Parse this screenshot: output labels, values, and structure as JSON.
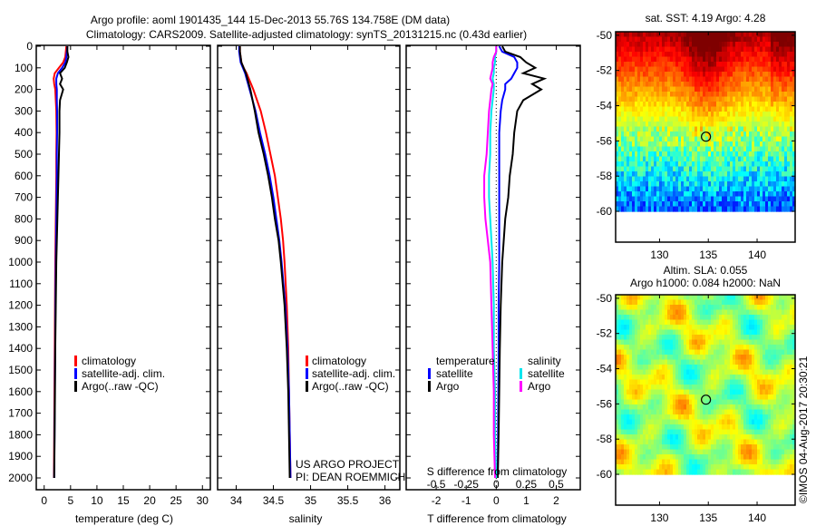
{
  "title_line1": "Argo profile: aoml 1901435_144 15-Dec-2013 55.76S 134.758E (DM data)",
  "title_line2": "Climatology: CARS2009. Satellite-adjusted climatology: synTS_20131215.nc (0.43d earlier)",
  "credit": "US ARGO PROJECT",
  "pi": "PI: DEAN ROEMMICH",
  "watermark": "©IMOS 04-Aug-2017 20:30:21",
  "colors": {
    "climatology": "#ff0000",
    "satellite": "#0000ff",
    "argo": "#000000",
    "sal_satellite": "#00e5ee",
    "sal_argo": "#ff00ff"
  },
  "chart_data": [
    {
      "type": "line",
      "title": "",
      "xlabel": "temperature (deg C)",
      "ylabel": "",
      "xlim": [
        -1.5,
        31.5
      ],
      "ylim": [
        2050,
        0
      ],
      "xticks": [
        0,
        5,
        10,
        15,
        20,
        25,
        30
      ],
      "yticks": [
        0,
        100,
        200,
        300,
        400,
        500,
        600,
        700,
        800,
        900,
        1000,
        1100,
        1200,
        1300,
        1400,
        1500,
        1600,
        1700,
        1800,
        1900,
        2000
      ],
      "depth": [
        0,
        25,
        50,
        75,
        100,
        125,
        150,
        175,
        200,
        250,
        300,
        400,
        500,
        600,
        700,
        800,
        900,
        1000,
        1200,
        1400,
        1600,
        1800,
        2000
      ],
      "legend": [
        "climatology",
        "satellite-adj. clim.",
        "Argo(..raw -QC)"
      ],
      "series": [
        {
          "name": "climatology",
          "values": [
            4.2,
            4.1,
            4.0,
            3.6,
            2.8,
            2.0,
            1.8,
            1.9,
            2.1,
            2.2,
            2.3,
            2.35,
            2.3,
            2.3,
            2.25,
            2.2,
            2.15,
            2.1,
            2.05,
            2.0,
            1.95,
            1.9,
            1.85
          ]
        },
        {
          "name": "satellite-adj. clim.",
          "values": [
            4.4,
            4.3,
            4.2,
            4.0,
            3.4,
            2.6,
            2.3,
            2.3,
            2.4,
            2.4,
            2.45,
            2.45,
            2.4,
            2.4,
            2.35,
            2.3,
            2.25,
            2.2,
            2.13,
            2.08,
            2.02,
            1.96,
            1.9
          ]
        },
        {
          "name": "Argo(..raw -QC)",
          "values": [
            4.4,
            4.4,
            4.6,
            4.3,
            3.9,
            3.0,
            3.4,
            3.0,
            3.6,
            3.0,
            2.9,
            2.9,
            2.8,
            2.7,
            2.6,
            2.5,
            2.4,
            2.3,
            2.2,
            2.1,
            2.05,
            1.98,
            1.9
          ]
        }
      ]
    },
    {
      "type": "line",
      "xlabel": "salinity",
      "xlim": [
        33.75,
        36.2
      ],
      "ylim": [
        2050,
        0
      ],
      "xticks": [
        34,
        34.5,
        35,
        35.5,
        36
      ],
      "legend": [
        "climatology",
        "satellite-adj. clim.",
        "Argo(..raw -QC)"
      ],
      "series": [
        {
          "name": "climatology",
          "values": [
            34.05,
            34.05,
            34.06,
            34.07,
            34.1,
            34.14,
            34.17,
            34.2,
            34.23,
            34.28,
            34.33,
            34.4,
            34.46,
            34.52,
            34.56,
            34.6,
            34.63,
            34.65,
            34.68,
            34.7,
            34.71,
            34.72,
            34.73
          ]
        },
        {
          "name": "satellite-adj. clim.",
          "values": [
            34.04,
            34.04,
            34.05,
            34.06,
            34.09,
            34.12,
            34.14,
            34.16,
            34.18,
            34.22,
            34.26,
            34.32,
            34.39,
            34.45,
            34.5,
            34.54,
            34.58,
            34.61,
            34.66,
            34.69,
            34.71,
            34.72,
            34.73
          ]
        },
        {
          "name": "Argo(..raw -QC)",
          "values": [
            34.05,
            34.05,
            34.06,
            34.07,
            34.1,
            34.13,
            34.15,
            34.17,
            34.19,
            34.22,
            34.25,
            34.3,
            34.37,
            34.43,
            34.48,
            34.52,
            34.57,
            34.6,
            34.65,
            34.68,
            34.7,
            34.71,
            34.72
          ]
        }
      ]
    },
    {
      "type": "line",
      "xlabel": "T difference from climatology",
      "xlabel2": "S difference from climatology",
      "xlim": [
        -2,
        2
      ],
      "xlim_display": [
        -3.0,
        2.8
      ],
      "ylim": [
        2050,
        0
      ],
      "xticks": [
        -2,
        -1,
        0,
        1,
        2
      ],
      "xticks2": [
        "-0.5",
        "-0.25",
        "0",
        "0.25",
        "0.5"
      ],
      "legend_temperature": {
        "title": "temperature",
        "items": [
          "satellite",
          "Argo"
        ]
      },
      "legend_salinity": {
        "title": "salinity",
        "items": [
          "satellite",
          "Argo"
        ]
      },
      "series": [
        {
          "name": "T satellite",
          "values": [
            0.1,
            0.2,
            0.6,
            0.7,
            0.7,
            0.6,
            0.5,
            0.3,
            0.3,
            0.2,
            0.15,
            0.1,
            0.1,
            0.1,
            0.1,
            0.1,
            0.1,
            0.1,
            0.08,
            0.08,
            0.07,
            0.06,
            0.05
          ]
        },
        {
          "name": "T Argo",
          "values": [
            0.2,
            0.3,
            0.8,
            1.0,
            1.3,
            0.9,
            1.6,
            1.2,
            1.5,
            0.9,
            0.7,
            0.6,
            0.55,
            0.45,
            0.4,
            0.3,
            0.25,
            0.2,
            0.15,
            0.12,
            0.1,
            0.08,
            0.05
          ]
        },
        {
          "name": "S satellite",
          "values": [
            0,
            0,
            -0.01,
            -0.01,
            -0.02,
            -0.02,
            -0.03,
            -0.02,
            -0.02,
            -0.03,
            -0.04,
            -0.05,
            -0.05,
            -0.06,
            -0.06,
            -0.05,
            -0.04,
            -0.03,
            -0.02,
            -0.02,
            -0.01,
            -0.01,
            0
          ]
        },
        {
          "name": "S Argo",
          "values": [
            0,
            0,
            -0.02,
            -0.03,
            -0.03,
            -0.04,
            -0.05,
            -0.03,
            -0.04,
            -0.05,
            -0.06,
            -0.07,
            -0.08,
            -0.1,
            -0.1,
            -0.09,
            -0.07,
            -0.05,
            -0.04,
            -0.03,
            -0.02,
            -0.02,
            -0.01
          ]
        }
      ]
    },
    {
      "type": "heatmap",
      "title": "sat. SST: 4.19 Argo: 4.28",
      "xlim": [
        125.5,
        143.9
      ],
      "ylim": [
        -61.75,
        -49.8
      ],
      "xticks": [
        130,
        135,
        140
      ],
      "yticks": [
        -50,
        -52,
        -54,
        -56,
        -58,
        -60
      ],
      "marker": {
        "lon": 134.758,
        "lat": -55.76
      }
    },
    {
      "type": "heatmap",
      "title": "Altim. SLA: 0.055",
      "subtitle": "Argo h1000: 0.084 h2000: NaN",
      "xlim": [
        125.5,
        143.9
      ],
      "ylim": [
        -61.75,
        -49.8
      ],
      "xticks": [
        130,
        135,
        140
      ],
      "yticks": [
        -50,
        -52,
        -54,
        -56,
        -58,
        -60
      ],
      "marker": {
        "lon": 134.758,
        "lat": -55.76
      }
    }
  ]
}
